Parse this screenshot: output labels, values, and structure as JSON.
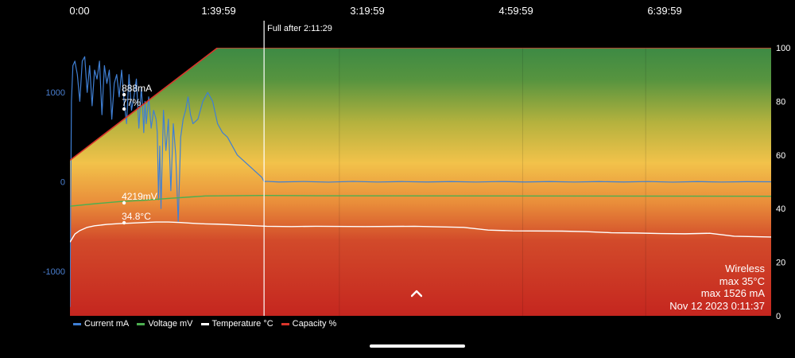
{
  "chart_data": {
    "type": "line",
    "x_ticks": [
      "0:00",
      "1:39:59",
      "3:19:59",
      "4:59:59",
      "6:39:59"
    ],
    "x_range_seconds": [
      0,
      28500
    ],
    "y_left_ticks": [
      "1000",
      "0",
      "-1000"
    ],
    "y_left_range": [
      -1500,
      1500
    ],
    "y_right_ticks": [
      "100",
      "80",
      "60",
      "40",
      "20",
      "0"
    ],
    "y_right_range": [
      0,
      100
    ],
    "full_marker": {
      "label": "Full after 2:11:29",
      "x_seconds": 7889
    },
    "series": [
      {
        "name": "Current mA",
        "axis": "left",
        "color": "#3f7fd4",
        "x_seconds": [
          0,
          60,
          120,
          200,
          300,
          400,
          500,
          600,
          700,
          800,
          900,
          1000,
          1100,
          1200,
          1300,
          1400,
          1500,
          1600,
          1700,
          1800,
          1900,
          2000,
          2100,
          2200,
          2300,
          2400,
          2500,
          2600,
          2700,
          2800,
          2900,
          2950,
          3000,
          3050,
          3100,
          3200,
          3300,
          3400,
          3500,
          3550,
          3600,
          3650,
          3700,
          3800,
          3900,
          4000,
          4100,
          4200,
          4300,
          4400,
          4500,
          4600,
          4700,
          4800,
          4900,
          5000,
          5200,
          5400,
          5600,
          5800,
          6000,
          6200,
          6400,
          6600,
          6800,
          7000,
          7200,
          7400,
          7600,
          7800,
          7889,
          7950,
          8500,
          9500,
          10500,
          11500,
          12500,
          13500,
          14500,
          15500,
          16500,
          17500,
          18500,
          19500,
          20500,
          21500,
          22500,
          23500,
          24500,
          25500,
          26500,
          27500,
          28500
        ],
        "values": [
          -1400,
          900,
          1300,
          1350,
          1200,
          900,
          1350,
          1400,
          1000,
          1300,
          850,
          1250,
          1150,
          1350,
          750,
          1300,
          1100,
          1250,
          700,
          1100,
          1200,
          950,
          1250,
          900,
          650,
          1200,
          800,
          950,
          1150,
          600,
          1050,
          850,
          550,
          900,
          650,
          950,
          600,
          800,
          700,
          550,
          -200,
          400,
          -300,
          800,
          350,
          700,
          -100,
          650,
          300,
          -450,
          500,
          700,
          800,
          950,
          750,
          650,
          700,
          900,
          1000,
          900,
          650,
          550,
          500,
          400,
          300,
          250,
          200,
          150,
          100,
          50,
          0,
          5,
          -2,
          3,
          -4,
          4,
          -3,
          2,
          -2,
          2,
          -3,
          3,
          -2,
          2,
          -3,
          2,
          -2,
          3,
          -4,
          2,
          -3,
          1,
          0
        ]
      },
      {
        "name": "Voltage mV",
        "axis": "right",
        "color": "#4caf50",
        "x_seconds": [
          0,
          1000,
          2000,
          3000,
          4000,
          5000,
          5500,
          7889,
          10000,
          28500
        ],
        "values": [
          40.9,
          41.8,
          42.6,
          43.1,
          43.8,
          44.4,
          44.7,
          44.9,
          44.8,
          44.6
        ]
      },
      {
        "name": "Temperature °C",
        "axis": "right",
        "color": "#ffffff",
        "x_seconds": [
          0,
          200,
          400,
          700,
          1000,
          1500,
          2000,
          2500,
          3000,
          3500,
          4000,
          4500,
          5000,
          5500,
          6000,
          7000,
          8000,
          9000,
          10000,
          12000,
          14000,
          16000,
          17000,
          18000,
          20000,
          21000,
          22000,
          23000,
          24000,
          25000,
          26000,
          27000,
          28500
        ],
        "values": [
          27.5,
          30.5,
          31.8,
          33.0,
          33.6,
          34.1,
          34.4,
          34.6,
          34.8,
          35.0,
          35.0,
          34.8,
          34.5,
          34.3,
          34.2,
          33.8,
          33.4,
          33.3,
          33.4,
          33.3,
          33.4,
          33.0,
          32.0,
          31.7,
          31.6,
          31.4,
          31.0,
          30.9,
          30.7,
          30.6,
          30.8,
          29.7,
          29.4
        ]
      },
      {
        "name": "Capacity %",
        "axis": "right",
        "color": "#d9352b",
        "x_seconds": [
          0,
          6000,
          6100,
          28500
        ],
        "values": [
          58,
          100,
          100,
          100
        ]
      }
    ],
    "point_annotations": [
      {
        "label": "888mA",
        "x_seconds": 2200,
        "series": "Current mA"
      },
      {
        "label": "77%",
        "x_seconds": 2200,
        "series": "Capacity %"
      },
      {
        "label": "4219mV",
        "x_seconds": 2200,
        "series": "Voltage mV"
      },
      {
        "label": "34.8°C",
        "x_seconds": 2200,
        "series": "Temperature °C"
      }
    ]
  },
  "info": {
    "type": "Wireless",
    "max_temp": "max 35°C",
    "max_current": "max 1526 mA",
    "timestamp": "Nov 12 2023 0:11:37"
  },
  "legend": [
    {
      "label": "Current mA",
      "color": "#3f7fd4"
    },
    {
      "label": "Voltage mV",
      "color": "#4caf50"
    },
    {
      "label": "Temperature °C",
      "color": "#ffffff"
    },
    {
      "label": "Capacity %",
      "color": "#d9352b"
    }
  ],
  "colors": {
    "gradient_top": "#3d8a44",
    "gradient_mid": "#f2c24a",
    "gradient_bottom": "#c5261f",
    "left_axis": "#4a7fd0",
    "right_axis": "#ffffff"
  },
  "controls": {
    "expand_icon": "chevron-up-icon"
  }
}
